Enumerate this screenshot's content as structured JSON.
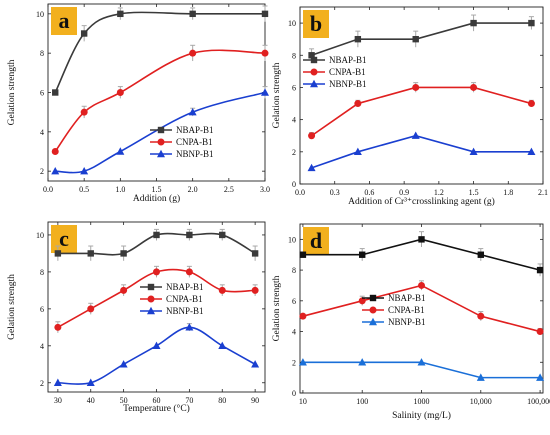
{
  "chart_data": [
    {
      "panel": "a",
      "type": "line",
      "xlabel": "Addition (g)",
      "ylabel": "Gelation strength",
      "xscale": "linear",
      "xlim": [
        0.0,
        3.0
      ],
      "ylim": [
        1.5,
        10.5
      ],
      "xticks": [
        0.0,
        0.5,
        1.0,
        1.5,
        2.0,
        2.5,
        3.0
      ],
      "xtick_labels": [
        "0.0",
        "0.5",
        "1.0",
        "1.5",
        "2.0",
        "2.5",
        "3.0"
      ],
      "yticks": [
        2,
        4,
        6,
        8,
        10
      ],
      "ytick_labels": [
        "2",
        "4",
        "6",
        "8",
        "10"
      ],
      "smooth": true,
      "legend_position": "bottom-right",
      "series": [
        {
          "name": "NBAP-B1",
          "color": "#3a3a3a",
          "marker": "square",
          "x": [
            0.1,
            0.5,
            1.0,
            2.0,
            3.0
          ],
          "y": [
            6,
            9,
            10,
            10,
            10
          ],
          "err": [
            0,
            0.4,
            0.3,
            0.3,
            0.4
          ]
        },
        {
          "name": "CNPA-B1",
          "color": "#e02020",
          "marker": "circle",
          "x": [
            0.1,
            0.5,
            1.0,
            2.0,
            3.0
          ],
          "y": [
            3,
            5,
            6,
            8,
            8
          ],
          "err": [
            0,
            0.3,
            0.3,
            0.4,
            0.4
          ]
        },
        {
          "name": "NBNP-B1",
          "color": "#1a3fd0",
          "marker": "triangle",
          "x": [
            0.1,
            0.5,
            1.0,
            2.0,
            3.0
          ],
          "y": [
            2,
            2,
            3,
            5,
            6
          ],
          "err": [
            0,
            0,
            0,
            0.2,
            0.3
          ]
        }
      ]
    },
    {
      "panel": "b",
      "type": "line",
      "xlabel": "Addition of Cr³⁺crosslinking agent (g)",
      "ylabel": "Gelation strength",
      "xscale": "linear",
      "xlim": [
        0.0,
        2.1
      ],
      "ylim": [
        0,
        11
      ],
      "xticks": [
        0.0,
        0.3,
        0.6,
        0.9,
        1.2,
        1.5,
        1.8,
        2.1
      ],
      "xtick_labels": [
        "0.0",
        "0.3",
        "0.6",
        "0.9",
        "1.2",
        "1.5",
        "1.8",
        "2.1"
      ],
      "yticks": [
        0,
        2,
        4,
        6,
        8,
        10
      ],
      "ytick_labels": [
        "0",
        "2",
        "4",
        "6",
        "8",
        "10"
      ],
      "smooth": false,
      "legend_position": "middle-left",
      "series": [
        {
          "name": "NBAP-B1",
          "color": "#3a3a3a",
          "marker": "square",
          "x": [
            0.1,
            0.5,
            1.0,
            1.5,
            2.0
          ],
          "y": [
            8,
            9,
            9,
            10,
            10
          ],
          "err": [
            0.4,
            0.5,
            0.5,
            0.5,
            0.4
          ]
        },
        {
          "name": "CNPA-B1",
          "color": "#e02020",
          "marker": "circle",
          "x": [
            0.1,
            0.5,
            1.0,
            1.5,
            2.0
          ],
          "y": [
            3,
            5,
            6,
            6,
            5
          ],
          "err": [
            0.2,
            0.2,
            0.3,
            0.3,
            0.2
          ]
        },
        {
          "name": "NBNP-B1",
          "color": "#1a3fd0",
          "marker": "triangle",
          "x": [
            0.1,
            0.5,
            1.0,
            1.5,
            2.0
          ],
          "y": [
            1,
            2,
            3,
            2,
            2
          ],
          "err": [
            0,
            0,
            0,
            0,
            0
          ]
        }
      ]
    },
    {
      "panel": "c",
      "type": "line",
      "xlabel": "Temperature (°C)",
      "ylabel": "Gelation strength",
      "xscale": "linear",
      "xlim": [
        27,
        93
      ],
      "ylim": [
        1.5,
        10.7
      ],
      "xticks": [
        30,
        40,
        50,
        60,
        70,
        80,
        90
      ],
      "xtick_labels": [
        "30",
        "40",
        "50",
        "60",
        "70",
        "80",
        "90"
      ],
      "yticks": [
        2,
        4,
        6,
        8,
        10
      ],
      "ytick_labels": [
        "2",
        "4",
        "6",
        "8",
        "10"
      ],
      "smooth": true,
      "legend_position": "middle-right",
      "series": [
        {
          "name": "NBAP-B1",
          "color": "#3a3a3a",
          "marker": "square",
          "x": [
            30,
            40,
            50,
            60,
            70,
            80,
            90
          ],
          "y": [
            9,
            9,
            9,
            10,
            10,
            10,
            9
          ],
          "err": [
            0.4,
            0.4,
            0.4,
            0.3,
            0.3,
            0.3,
            0.4
          ]
        },
        {
          "name": "CNPA-B1",
          "color": "#e02020",
          "marker": "circle",
          "x": [
            30,
            40,
            50,
            60,
            70,
            80,
            90
          ],
          "y": [
            5,
            6,
            7,
            8,
            8,
            7,
            7
          ],
          "err": [
            0.3,
            0.3,
            0.3,
            0.3,
            0.3,
            0.3,
            0.3
          ]
        },
        {
          "name": "NBNP-B1",
          "color": "#1a3fd0",
          "marker": "triangle",
          "x": [
            30,
            40,
            50,
            60,
            70,
            80,
            90
          ],
          "y": [
            2,
            2,
            3,
            4,
            5,
            4,
            3
          ],
          "err": [
            0,
            0,
            0,
            0,
            0.2,
            0,
            0
          ]
        }
      ]
    },
    {
      "panel": "d",
      "type": "line",
      "xlabel": "Salinity    (mg/L)",
      "ylabel": "Gelation strength",
      "xscale": "log",
      "xlim": [
        10,
        100000
      ],
      "ylim": [
        0,
        11
      ],
      "xticks": [
        10,
        100,
        1000,
        10000,
        100000
      ],
      "xtick_labels": [
        "10",
        "100",
        "1000",
        "10,000",
        "100,000"
      ],
      "yticks": [
        0,
        2,
        4,
        6,
        8,
        10
      ],
      "ytick_labels": [
        "0",
        "2",
        "4",
        "6",
        "8",
        "10"
      ],
      "smooth": false,
      "legend_position": "center",
      "series": [
        {
          "name": "NBAP-B1",
          "color": "#111111",
          "marker": "square",
          "x": [
            10,
            100,
            1000,
            10000,
            100000
          ],
          "y": [
            9,
            9,
            10,
            9,
            8
          ],
          "err": [
            0,
            0.4,
            0.5,
            0.4,
            0.4
          ]
        },
        {
          "name": "CNPA-B1",
          "color": "#e02020",
          "marker": "circle",
          "x": [
            10,
            100,
            1000,
            10000,
            100000
          ],
          "y": [
            5,
            6,
            7,
            5,
            4
          ],
          "err": [
            0,
            0.3,
            0.3,
            0.3,
            0.2
          ]
        },
        {
          "name": "NBNP-B1",
          "color": "#1a6fd8",
          "marker": "triangle",
          "x": [
            10,
            100,
            1000,
            10000,
            100000
          ],
          "y": [
            2,
            2,
            2,
            1,
            1
          ],
          "err": [
            0,
            0,
            0,
            0,
            0
          ]
        }
      ]
    }
  ]
}
